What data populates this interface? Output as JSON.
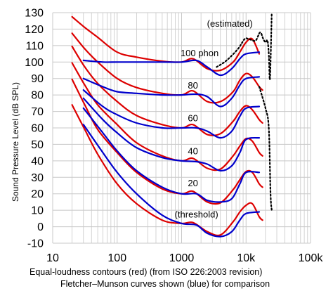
{
  "chart_data": {
    "type": "line",
    "xscale": "log",
    "xlim": [
      10,
      100000
    ],
    "ylim": [
      -10,
      130
    ],
    "grid": true,
    "ylabel": "Sound Pressure Level (dB SPL)",
    "caption_line1": "Equal-loudness contours (red) (from ISO 226:2003 revision)",
    "caption_line2": "Fletcher–Munson curves shown (blue) for comparison",
    "xticks": [
      {
        "v": 10,
        "label": "10"
      },
      {
        "v": 100,
        "label": "100"
      },
      {
        "v": 1000,
        "label": "1000"
      },
      {
        "v": 10000,
        "label": "10k"
      },
      {
        "v": 100000,
        "label": "100k"
      }
    ],
    "yticks": [
      -10,
      0,
      10,
      20,
      30,
      40,
      50,
      60,
      70,
      80,
      90,
      100,
      110,
      120,
      130
    ],
    "annotations": [
      {
        "text": "(estimated)",
        "x": 5600,
        "y": 121.5
      },
      {
        "text": "100 phon",
        "x": 1900,
        "y": 103.5
      },
      {
        "text": "80",
        "x": 1500,
        "y": 84
      },
      {
        "text": "60",
        "x": 1500,
        "y": 64
      },
      {
        "text": "40",
        "x": 1500,
        "y": 44
      },
      {
        "text": "20",
        "x": 1500,
        "y": 24.5
      },
      {
        "text": "(threshold)",
        "x": 1700,
        "y": 5.5
      }
    ],
    "colors": {
      "iso": "#dd0000",
      "fm": "#0000cc",
      "estimated": "#000000",
      "grid": "#c8c8c8"
    },
    "series": [
      {
        "group": "ISO 226:2003",
        "phon": 100,
        "x": [
          20,
          31.5,
          50,
          100,
          200,
          500,
          1000,
          1500,
          2500,
          4000,
          6300,
          8000,
          10000,
          12500,
          16000
        ],
        "y": [
          127.5,
          121,
          115,
          106,
          103,
          100.5,
          100,
          102,
          96,
          95,
          100,
          106,
          112,
          114,
          105
        ]
      },
      {
        "group": "ISO 226:2003",
        "phon": 80,
        "x": [
          20,
          31.5,
          50,
          100,
          200,
          500,
          1000,
          1500,
          2500,
          4000,
          6300,
          8000,
          10000,
          12500,
          16000,
          18000
        ],
        "y": [
          117.5,
          108,
          100,
          90,
          84.5,
          81,
          80,
          82.5,
          76,
          76,
          82,
          89,
          93,
          91,
          85,
          83
        ]
      },
      {
        "group": "ISO 226:2003",
        "phon": 60,
        "x": [
          20,
          31.5,
          50,
          100,
          200,
          500,
          1000,
          1500,
          2500,
          4000,
          6300,
          8000,
          10000,
          12500,
          16000,
          18000
        ],
        "y": [
          109.5,
          97,
          87,
          76,
          67.5,
          62,
          60,
          62,
          56,
          56.5,
          64,
          70,
          73.5,
          71,
          65,
          63
        ]
      },
      {
        "group": "ISO 226:2003",
        "phon": 40,
        "x": [
          20,
          31.5,
          50,
          100,
          200,
          500,
          1000,
          1500,
          2500,
          4000,
          6300,
          8000,
          10000,
          12500,
          16000,
          18000
        ],
        "y": [
          99.5,
          86,
          74,
          62,
          51,
          43,
          40,
          41.5,
          35.5,
          35,
          43,
          49,
          53.5,
          52,
          45,
          43
        ]
      },
      {
        "group": "ISO 226:2003",
        "phon": 20,
        "x": [
          20,
          31.5,
          50,
          100,
          200,
          500,
          1000,
          1500,
          2500,
          4000,
          6300,
          8000,
          10000,
          12500,
          16000,
          18000
        ],
        "y": [
          89.5,
          74,
          59,
          45,
          33,
          23,
          20,
          21.5,
          15,
          14.5,
          22.5,
          28.5,
          33.5,
          33,
          26,
          24
        ]
      },
      {
        "group": "ISO 226:2003",
        "phon": 0,
        "x": [
          20,
          31.5,
          50,
          100,
          200,
          500,
          1000,
          1500,
          2500,
          4000,
          6300,
          8000,
          10000,
          12500,
          16000,
          18000
        ],
        "y": [
          74,
          59,
          44,
          26,
          14,
          4,
          2,
          2.5,
          -3,
          -5,
          3,
          9,
          13,
          14,
          6,
          4
        ]
      },
      {
        "group": "Fletcher–Munson",
        "phon": 100,
        "x": [
          30,
          60,
          100,
          200,
          500,
          1000,
          1700,
          2500,
          4000,
          6000,
          8000,
          10000,
          16000
        ],
        "y": [
          101,
          100,
          100,
          100,
          100,
          100,
          101,
          97,
          92,
          96,
          102,
          105,
          106
        ]
      },
      {
        "group": "Fletcher–Munson",
        "phon": 80,
        "x": [
          30,
          60,
          100,
          200,
          500,
          1000,
          1700,
          2500,
          4000,
          6000,
          8000,
          10000,
          16000
        ],
        "y": [
          90,
          85,
          82,
          81,
          80,
          80,
          80.5,
          79,
          73,
          78,
          86,
          90,
          91
        ]
      },
      {
        "group": "Fletcher–Munson",
        "phon": 60,
        "x": [
          30,
          60,
          100,
          200,
          500,
          1000,
          1700,
          2500,
          4000,
          6000,
          8000,
          10000,
          16000
        ],
        "y": [
          83,
          73,
          68,
          63,
          60,
          60,
          60,
          58,
          54,
          58,
          67,
          72,
          73
        ]
      },
      {
        "group": "Fletcher–Munson",
        "phon": 40,
        "x": [
          30,
          60,
          100,
          200,
          500,
          1000,
          1700,
          2500,
          4000,
          6000,
          8000,
          10000,
          16000
        ],
        "y": [
          78,
          65,
          57,
          48,
          42,
          40,
          39.5,
          38,
          34,
          37,
          45,
          53,
          54
        ]
      },
      {
        "group": "Fletcher–Munson",
        "phon": 20,
        "x": [
          30,
          60,
          100,
          200,
          500,
          1000,
          1700,
          2500,
          4000,
          6000,
          8000,
          10000,
          16000
        ],
        "y": [
          72,
          57,
          46,
          34,
          24,
          20,
          20,
          16,
          15,
          17,
          26,
          33,
          33
        ]
      },
      {
        "group": "Fletcher–Munson",
        "phon": 0,
        "x": [
          30,
          60,
          100,
          200,
          500,
          1000,
          1700,
          2500,
          4000,
          6000,
          8000,
          10000,
          16000
        ],
        "y": [
          62,
          45,
          33,
          20,
          7,
          2,
          1,
          -4,
          -6,
          -3,
          4,
          8,
          9
        ]
      },
      {
        "group": "estimated",
        "x": [
          3500,
          5000,
          7500,
          9500,
          11000,
          14000,
          16500,
          18500,
          20000,
          21500,
          22500,
          23500,
          25000
        ],
        "y": [
          97,
          101,
          108,
          114,
          114,
          113,
          118,
          114,
          112,
          113,
          105,
          90,
          130
        ]
      },
      {
        "group": "estimated",
        "x": [
          16000,
          20000,
          22500,
          24000,
          25000
        ],
        "y": [
          85,
          72,
          60,
          20,
          10
        ]
      }
    ]
  }
}
